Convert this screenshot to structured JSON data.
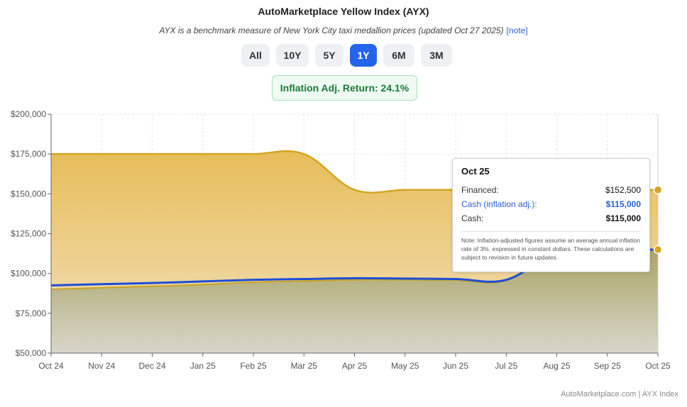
{
  "page": {
    "title": "AutoMarketplace Yellow Index (AYX)",
    "subtitle": "AYX is a benchmark measure of New York City taxi medallion prices (updated Oct 27 2025)",
    "note_link": "[note]",
    "range_buttons": [
      "All",
      "10Y",
      "5Y",
      "1Y",
      "6M",
      "3M"
    ],
    "active_range": "1Y",
    "badge": "Inflation Adj. Return: 24.1%",
    "footer": "AutoMarketplace.com | AYX Index"
  },
  "tooltip": {
    "date": "Oct 25",
    "rows": [
      {
        "label": "Financed:",
        "value": "$152,500"
      },
      {
        "label": "Cash (inflation adj.):",
        "value": "$115,000"
      },
      {
        "label": "Cash:",
        "value": "$115,000"
      }
    ],
    "note": "Note: Inflation-adjusted figures assume an average annual inflation rate of 3%, expressed in constant dollars. These calculations are subject to revision in future updates."
  },
  "colors": {
    "financed_line": "#d4a520",
    "financed_fill_top": "#e7bd5a",
    "financed_fill_bottom": "#f3e2bd",
    "cash_fill_top": "#a9a464",
    "cash_fill_bottom": "#d9d6cb",
    "cash_adj_line": "#1d4ed8",
    "cash_line": "#c9a227",
    "active_button": "#2563eb",
    "badge_text": "#1f7a3a"
  },
  "chart_data": {
    "type": "area",
    "categories": [
      "Oct 24",
      "Nov 24",
      "Dec 24",
      "Jan 25",
      "Feb 25",
      "Mar 25",
      "Apr 25",
      "May 25",
      "Jun 25",
      "Jul 25",
      "Aug 25",
      "Sep 25",
      "Oct 25"
    ],
    "yticks": [
      "$50,000",
      "$75,000",
      "$100,000",
      "$125,000",
      "$150,000",
      "$175,000",
      "$200,000"
    ],
    "ylim": [
      50000,
      200000
    ],
    "series": [
      {
        "name": "Financed",
        "values": [
          175000,
          175000,
          175000,
          175000,
          175000,
          175000,
          152500,
          152500,
          152500,
          152500,
          152500,
          152500,
          152500
        ]
      },
      {
        "name": "Cash (inflation adj.)",
        "values": [
          92500,
          93300,
          94000,
          95000,
          96000,
          96500,
          97000,
          96800,
          96500,
          96000,
          113000,
          114500,
          115000
        ]
      },
      {
        "name": "Cash",
        "values": [
          90000,
          91000,
          92000,
          93000,
          94500,
          95300,
          96000,
          96000,
          95800,
          95500,
          113000,
          114500,
          115000
        ]
      }
    ],
    "grid": true,
    "highlighted_category": "Oct 25"
  }
}
